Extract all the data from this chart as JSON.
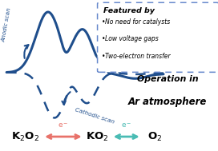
{
  "bg_color": "#ffffff",
  "cv_color": "#1f4e8c",
  "arrow_color_left": "#e8726a",
  "arrow_color_right": "#4abcb4",
  "box_edge_color": "#6688cc",
  "title_text": "Featured by",
  "bullet1": "No need for catalysts",
  "bullet2": "Low voltage gaps",
  "bullet3": "Two-electron transfer",
  "operation_line1": "Operation in",
  "operation_line2": "Ar atmosphere",
  "anodic_label": "Anodic scan",
  "cathodic_label": "Cathodic scan",
  "fig_w": 2.72,
  "fig_h": 1.89,
  "dpi": 100
}
